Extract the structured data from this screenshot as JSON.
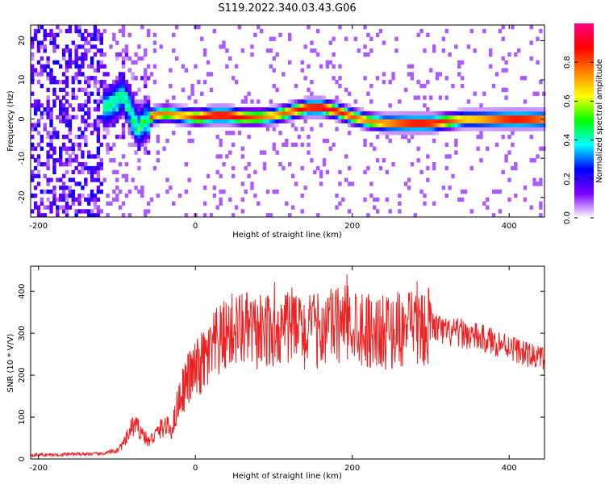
{
  "title": "S119.2022.340.03.43.G06",
  "chart_data": [
    {
      "type": "heatmap",
      "xlabel": "Height of straight line (km)",
      "ylabel": "Frequency (Hz)",
      "xlim": [
        -210,
        445
      ],
      "ylim": [
        -25,
        24
      ],
      "xticks": [
        -200,
        0,
        200,
        400
      ],
      "yticks": [
        -20,
        -10,
        0,
        10,
        20
      ],
      "colorbar": {
        "label": "Normalized spectral amplitude",
        "range": [
          0,
          1
        ],
        "ticks": [
          0.0,
          0.2,
          0.4,
          0.6,
          0.8
        ],
        "colormap": [
          "#ffffff",
          "#7b00ff",
          "#0000ff",
          "#00ffff",
          "#00ff00",
          "#ffff00",
          "#ff8000",
          "#ff0000",
          "#ff0080"
        ]
      },
      "ridge": {
        "x": [
          -130,
          -110,
          -95,
          -85,
          -75,
          -65,
          -55,
          -40,
          -20,
          0,
          20,
          40,
          60,
          80,
          100,
          120,
          140,
          160,
          180,
          200,
          220,
          240,
          260,
          280,
          300,
          320,
          340,
          360,
          380,
          400,
          420,
          440
        ],
        "y": [
          2,
          3,
          6,
          2,
          -3,
          -1,
          0.5,
          1,
          0.5,
          0,
          0.5,
          0.5,
          0,
          0,
          0.5,
          1.5,
          2.5,
          2.5,
          1.5,
          0,
          -1,
          -1.5,
          -1.5,
          -1.5,
          -1.5,
          -1,
          -0.5,
          -0.5,
          -0.5,
          -0.5,
          -0.5,
          -0.5
        ]
      }
    },
    {
      "type": "line",
      "xlabel": "Height of straight line (km)",
      "ylabel": "SNR (10 * V/V)",
      "xlim": [
        -210,
        445
      ],
      "ylim": [
        0,
        460
      ],
      "xticks": [
        -200,
        0,
        200,
        400
      ],
      "yticks": [
        0,
        100,
        200,
        300,
        400
      ],
      "series": [
        {
          "color": "#ee2222",
          "x": [
            -210,
            -180,
            -150,
            -120,
            -100,
            -90,
            -80,
            -70,
            -60,
            -50,
            -40,
            -30,
            -20,
            -10,
            0,
            10,
            20,
            30,
            40,
            50,
            60,
            80,
            100,
            120,
            140,
            160,
            180,
            200,
            220,
            240,
            260,
            280,
            300,
            320,
            340,
            360,
            380,
            400,
            420,
            445
          ],
          "values": [
            10,
            10,
            12,
            12,
            20,
            40,
            80,
            70,
            40,
            60,
            80,
            70,
            150,
            190,
            210,
            230,
            250,
            280,
            300,
            310,
            310,
            300,
            310,
            320,
            300,
            310,
            320,
            330,
            310,
            300,
            310,
            310,
            320,
            300,
            300,
            290,
            280,
            270,
            250,
            240
          ]
        }
      ]
    }
  ]
}
